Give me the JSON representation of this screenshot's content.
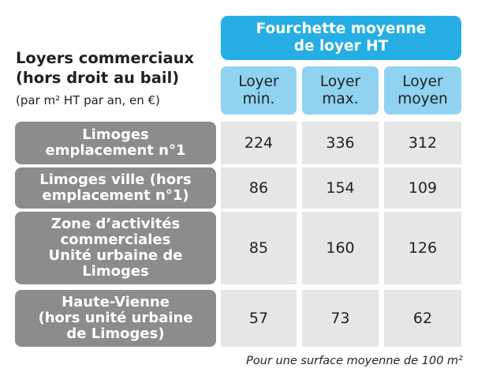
{
  "title": {
    "line1": "Loyers commerciaux",
    "line2": "(hors droit au bail)",
    "subtitle": "(par m² HT par an, en €)"
  },
  "header": {
    "group_line1": "Fourchette moyenne",
    "group_line2": "de loyer HT",
    "columns": [
      {
        "line1": "Loyer",
        "line2": "min."
      },
      {
        "line1": "Loyer",
        "line2": "max."
      },
      {
        "line1": "Loyer",
        "line2": "moyen"
      }
    ]
  },
  "rows": [
    {
      "label": [
        "Limoges",
        "emplacement n°1"
      ],
      "values": [
        "224",
        "336",
        "312"
      ]
    },
    {
      "label": [
        "Limoges ville (hors",
        "emplacement n°1)"
      ],
      "values": [
        "86",
        "154",
        "109"
      ]
    },
    {
      "label": [
        "Zone d’activités",
        "commerciales",
        "Unité urbaine de",
        "Limoges"
      ],
      "values": [
        "85",
        "160",
        "126"
      ]
    },
    {
      "label": [
        "Haute-Vienne",
        "(hors unité urbaine",
        "de Limoges)"
      ],
      "values": [
        "57",
        "73",
        "62"
      ]
    }
  ],
  "footnote": "Pour une surface moyenne de 100 m²",
  "colors": {
    "header_dark": "#25aee3",
    "header_light": "#8fd3f1",
    "row_label": "#8c8c8c",
    "cell": "#e6e6e6"
  }
}
